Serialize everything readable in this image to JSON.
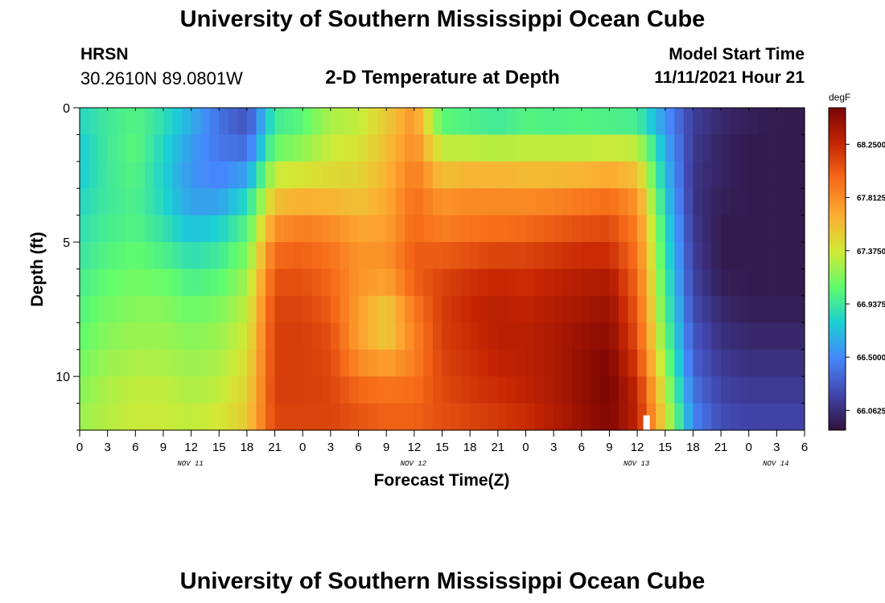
{
  "header": {
    "title": "University of Southern Mississippi Ocean Cube",
    "station": "HRSN",
    "coords": "30.2610N  89.0801W",
    "plot_title": "2-D Temperature at Depth",
    "model_label": "Model Start Time",
    "model_time": "11/11/2021 Hour 21"
  },
  "footer": {
    "title": "University of Southern Mississippi Ocean Cube"
  },
  "chart_data": {
    "type": "heatmap",
    "xlabel": "Forecast Time(Z)",
    "ylabel": "Depth (ft)",
    "x_tick_labels": [
      "0",
      "3",
      "6",
      "9",
      "12",
      "15",
      "18",
      "21",
      "0",
      "3",
      "6",
      "9",
      "12",
      "15",
      "18",
      "21",
      "0",
      "3",
      "6",
      "9",
      "12",
      "15",
      "18",
      "21",
      "0",
      "3",
      "6"
    ],
    "date_labels": [
      "NOV 11",
      "NOV 12",
      "NOV 13",
      "NOV 14"
    ],
    "y_ticks": [
      0,
      5,
      10
    ],
    "ylim": [
      0,
      12
    ],
    "y_inverted": true,
    "colorbar": {
      "unit": "degF",
      "labels": [
        "68.2500",
        "67.8125",
        "67.3750",
        "66.9375",
        "66.5000",
        "66.0625"
      ],
      "range": [
        65.9,
        68.55
      ]
    },
    "x_hours": [
      0,
      3,
      6,
      9,
      12,
      15,
      18,
      21,
      24,
      27,
      30,
      33,
      36,
      39,
      42,
      45,
      48,
      51,
      54,
      57,
      60,
      63,
      66,
      69,
      72,
      75,
      78
    ],
    "depths": [
      0,
      1,
      2,
      3,
      4,
      5,
      6,
      7,
      8,
      9,
      10,
      11,
      12
    ],
    "z": [
      [
        66.85,
        66.95,
        67.0,
        66.9,
        66.7,
        66.4,
        66.2,
        66.95,
        67.0,
        67.25,
        67.3,
        67.5,
        67.75,
        66.85,
        66.8,
        66.75,
        66.85,
        66.8,
        66.85,
        66.8,
        66.75,
        66.5,
        66.15,
        66.05,
        66.0,
        65.95,
        65.95
      ],
      [
        66.8,
        66.95,
        67.05,
        66.85,
        66.6,
        66.4,
        66.3,
        66.95,
        67.1,
        67.3,
        67.35,
        67.55,
        67.8,
        67.25,
        67.2,
        67.15,
        67.2,
        67.2,
        67.2,
        67.2,
        67.2,
        66.6,
        66.15,
        66.0,
        65.95,
        65.95,
        65.95
      ],
      [
        66.75,
        66.95,
        67.05,
        66.8,
        66.55,
        66.45,
        66.45,
        67.25,
        67.3,
        67.4,
        67.45,
        67.6,
        67.85,
        67.4,
        67.45,
        67.45,
        67.45,
        67.45,
        67.45,
        67.5,
        67.45,
        66.7,
        66.1,
        66.0,
        65.95,
        65.95,
        65.95
      ],
      [
        66.8,
        66.95,
        67.0,
        66.8,
        66.55,
        66.5,
        66.75,
        67.45,
        67.5,
        67.5,
        67.5,
        67.65,
        67.95,
        67.75,
        67.8,
        67.8,
        67.75,
        67.75,
        67.8,
        67.85,
        67.7,
        66.75,
        66.1,
        66.0,
        65.95,
        65.95,
        65.95
      ],
      [
        66.85,
        66.95,
        67.0,
        66.85,
        66.65,
        66.7,
        66.95,
        67.7,
        67.8,
        67.75,
        67.65,
        67.7,
        67.95,
        67.8,
        67.85,
        67.85,
        67.9,
        67.95,
        68.0,
        68.05,
        67.85,
        66.85,
        66.1,
        65.95,
        65.95,
        65.95,
        65.95
      ],
      [
        66.9,
        67.0,
        67.05,
        66.95,
        66.8,
        66.9,
        67.1,
        67.9,
        67.95,
        67.9,
        67.75,
        67.75,
        68.0,
        67.95,
        68.0,
        68.05,
        68.05,
        68.1,
        68.15,
        68.15,
        67.9,
        66.9,
        66.15,
        65.95,
        65.95,
        65.95,
        65.95
      ],
      [
        66.95,
        67.05,
        67.1,
        67.05,
        66.95,
        67.0,
        67.2,
        68.05,
        68.05,
        67.95,
        67.8,
        67.8,
        68.05,
        68.1,
        68.15,
        68.2,
        68.2,
        68.25,
        68.3,
        68.3,
        67.95,
        66.95,
        66.15,
        65.95,
        65.95,
        65.95,
        65.95
      ],
      [
        67.0,
        67.1,
        67.15,
        67.15,
        67.05,
        67.1,
        67.3,
        68.1,
        68.1,
        68.0,
        67.75,
        67.6,
        67.95,
        68.15,
        68.25,
        68.3,
        68.25,
        68.3,
        68.35,
        68.4,
        68.0,
        67.0,
        66.2,
        66.0,
        65.95,
        65.95,
        65.95
      ],
      [
        67.05,
        67.15,
        67.2,
        67.2,
        67.15,
        67.2,
        67.35,
        68.15,
        68.15,
        68.05,
        67.7,
        67.45,
        67.85,
        68.15,
        68.25,
        68.3,
        68.3,
        68.35,
        68.4,
        68.45,
        68.05,
        67.05,
        66.25,
        66.05,
        66.0,
        66.0,
        66.0
      ],
      [
        67.1,
        67.2,
        67.25,
        67.25,
        67.2,
        67.25,
        67.4,
        68.15,
        68.15,
        68.1,
        67.75,
        67.6,
        67.85,
        68.15,
        68.2,
        68.3,
        68.3,
        68.35,
        68.45,
        68.5,
        68.1,
        67.15,
        66.3,
        66.1,
        66.05,
        66.05,
        66.05
      ],
      [
        67.15,
        67.25,
        67.3,
        67.3,
        67.25,
        67.3,
        67.45,
        68.15,
        68.15,
        68.1,
        67.9,
        67.85,
        67.9,
        68.1,
        68.2,
        68.25,
        68.3,
        68.35,
        68.45,
        68.55,
        68.2,
        67.25,
        66.35,
        66.15,
        66.1,
        66.1,
        66.1
      ],
      [
        67.2,
        67.3,
        67.35,
        67.35,
        67.3,
        67.35,
        67.5,
        68.15,
        68.15,
        68.15,
        68.05,
        68.0,
        68.0,
        68.1,
        68.15,
        68.2,
        68.25,
        68.35,
        68.45,
        68.55,
        68.3,
        67.4,
        66.45,
        66.2,
        66.15,
        66.15,
        66.15
      ],
      [
        67.25,
        67.3,
        67.35,
        67.35,
        67.35,
        67.4,
        67.55,
        68.1,
        68.1,
        68.1,
        68.05,
        68.0,
        68.0,
        68.05,
        68.1,
        68.15,
        68.2,
        68.3,
        68.4,
        68.5,
        68.25,
        67.45,
        66.5,
        66.25,
        66.2,
        66.2,
        66.2
      ]
    ],
    "turbo_stops": [
      "#30123b",
      "#4146ac",
      "#4686fb",
      "#1bcfd4",
      "#61fc6c",
      "#d2e935",
      "#fdac33",
      "#f66b19",
      "#c42503",
      "#7a0403"
    ],
    "marker": {
      "hour": 61,
      "depth_from": 11.45,
      "depth_to": 12
    }
  }
}
